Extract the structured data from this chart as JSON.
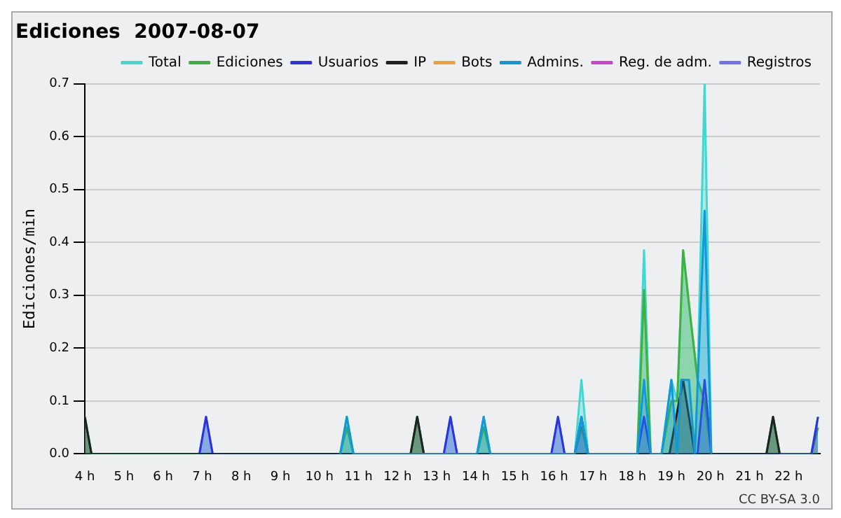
{
  "chart_data": {
    "type": "area",
    "title": "Ediciones  2007-08-07",
    "ylabel": "Ediciones/min",
    "xlim": [
      4,
      22.8
    ],
    "ylim": [
      0,
      0.7
    ],
    "xticks": [
      {
        "value": 4,
        "label": "4 h"
      },
      {
        "value": 5,
        "label": "5 h"
      },
      {
        "value": 6,
        "label": "6 h"
      },
      {
        "value": 7,
        "label": "7 h"
      },
      {
        "value": 8,
        "label": "8 h"
      },
      {
        "value": 9,
        "label": "9 h"
      },
      {
        "value": 10,
        "label": "10 h"
      },
      {
        "value": 11,
        "label": "11 h"
      },
      {
        "value": 12,
        "label": "12 h"
      },
      {
        "value": 13,
        "label": "13 h"
      },
      {
        "value": 14,
        "label": "14 h"
      },
      {
        "value": 15,
        "label": "15 h"
      },
      {
        "value": 16,
        "label": "16 h"
      },
      {
        "value": 17,
        "label": "17 h"
      },
      {
        "value": 18,
        "label": "18 h"
      },
      {
        "value": 19,
        "label": "19 h"
      },
      {
        "value": 20,
        "label": "20 h"
      },
      {
        "value": 21,
        "label": "21 h"
      },
      {
        "value": 22,
        "label": "22 h"
      }
    ],
    "yticks": [
      {
        "value": 0,
        "label": "0.0"
      },
      0.1,
      0.2,
      0.3,
      0.4,
      0.5,
      0.6,
      0.7
    ],
    "grid": "y",
    "legend": "top right",
    "marker": "none",
    "line_style": "solid",
    "annotations": [
      "CC BY-SA 3.0"
    ],
    "series": [
      {
        "name": "Total",
        "color": "#40d8d0",
        "x": [
          4,
          4.17,
          6.93,
          7.1,
          7.27,
          10.53,
          10.7,
          10.87,
          12.33,
          12.5,
          12.67,
          13.18,
          13.35,
          13.52,
          14.03,
          14.2,
          14.37,
          15.93,
          16.1,
          16.27,
          16.53,
          16.7,
          16.87,
          18.13,
          18.3,
          18.47,
          18.75,
          19.0,
          19.15,
          19.3,
          19.5,
          19.67,
          19.85,
          20.02,
          21.43,
          21.6,
          21.77,
          22.58,
          22.75
        ],
        "values": [
          0.07,
          0,
          0,
          0.07,
          0,
          0,
          0.07,
          0,
          0,
          0.07,
          0,
          0,
          0.07,
          0,
          0,
          0.07,
          0,
          0,
          0.07,
          0,
          0,
          0.14,
          0,
          0,
          0.385,
          0,
          0,
          0.14,
          0.1,
          0.385,
          0.25,
          0.14,
          0.7,
          0,
          0,
          0.07,
          0,
          0,
          0.07
        ]
      },
      {
        "name": "Ediciones",
        "color": "#40b040",
        "x": [
          4,
          4.17,
          10.53,
          10.7,
          10.87,
          12.33,
          12.5,
          12.67,
          14.03,
          14.2,
          14.37,
          16.53,
          16.7,
          16.87,
          18.13,
          18.3,
          18.47,
          18.75,
          19.0,
          19.15,
          19.3,
          19.5,
          19.67,
          19.85,
          20.02,
          21.43,
          21.6,
          21.77,
          22.58,
          22.75
        ],
        "values": [
          0.07,
          0,
          0,
          0.05,
          0,
          0,
          0.07,
          0,
          0,
          0.05,
          0,
          0,
          0.05,
          0,
          0,
          0.31,
          0,
          0,
          0.1,
          0.1,
          0.385,
          0.25,
          0.14,
          0.1,
          0,
          0,
          0.07,
          0,
          0,
          0.05
        ]
      },
      {
        "name": "Usuarios",
        "color": "#3030e0",
        "x": [
          6.93,
          7.1,
          7.27,
          13.18,
          13.35,
          13.52,
          15.93,
          16.1,
          16.27,
          16.53,
          16.7,
          16.87,
          18.13,
          18.3,
          18.47,
          19.67,
          19.85,
          20.02,
          22.58,
          22.75
        ],
        "values": [
          0,
          0.07,
          0,
          0,
          0.07,
          0,
          0,
          0.07,
          0,
          0,
          0.07,
          0,
          0,
          0.07,
          0,
          0,
          0.14,
          0,
          0,
          0.07
        ]
      },
      {
        "name": "IP",
        "color": "#202020",
        "x": [
          4,
          4.17,
          12.33,
          12.5,
          12.67,
          18.95,
          19.3,
          19.6,
          21.43,
          21.6,
          21.77
        ],
        "values": [
          0.07,
          0,
          0,
          0.07,
          0,
          0,
          0.14,
          0,
          0,
          0.07,
          0
        ]
      },
      {
        "name": "Bots",
        "color": "#f0a030"
      },
      {
        "name": "Admins.",
        "color": "#1098d8",
        "x": [
          10.53,
          10.7,
          10.87,
          14.03,
          14.2,
          14.37,
          16.53,
          16.7,
          16.87,
          18.13,
          18.3,
          18.47,
          18.75,
          19.0,
          19.15,
          19.25,
          19.45,
          19.6,
          19.85,
          20.02
        ],
        "values": [
          0,
          0.07,
          0,
          0,
          0.07,
          0,
          0,
          0.07,
          0,
          0,
          0.14,
          0,
          0,
          0.14,
          0,
          0.14,
          0.14,
          0,
          0.46,
          0
        ]
      },
      {
        "name": "Reg. de adm.",
        "color": "#d040d0"
      },
      {
        "name": "Registros",
        "color": "#7070f0"
      }
    ]
  }
}
